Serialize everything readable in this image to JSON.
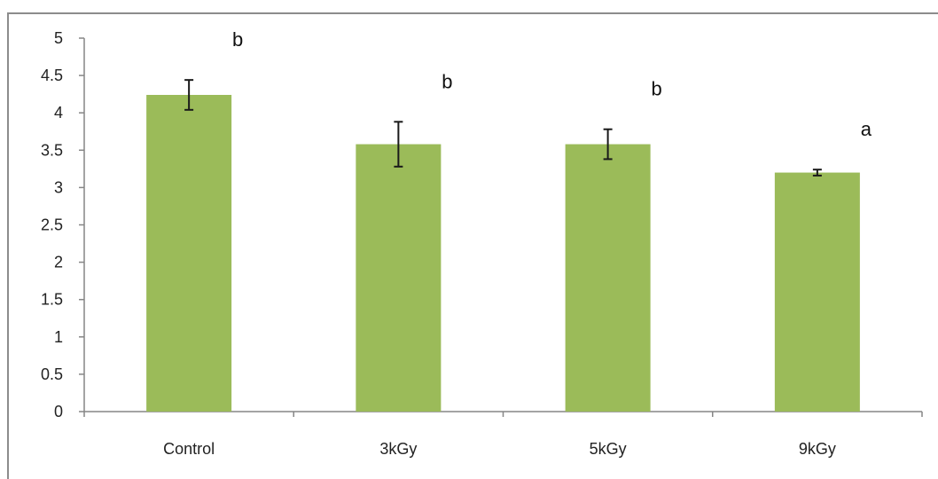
{
  "chart_data": {
    "type": "bar",
    "categories": [
      "Control",
      "3kGy",
      "5kGy",
      "9kGy"
    ],
    "values": [
      4.24,
      3.58,
      3.58,
      3.2
    ],
    "error": [
      0.2,
      0.3,
      0.2,
      0.04
    ],
    "significance_letters": [
      "b",
      "b",
      "b",
      "a"
    ],
    "title": "",
    "xlabel": "",
    "ylabel": "",
    "ylim": [
      0,
      5
    ],
    "yticks": [
      "0",
      "0.5",
      "1",
      "1.5",
      "2",
      "2.5",
      "3",
      "3.5",
      "4",
      "4.5",
      "5"
    ],
    "grid": false,
    "legend": "none",
    "colors": {
      "bar": "#9bbb59",
      "error_bar": "#1a1a1a",
      "axis": "#868686"
    }
  }
}
